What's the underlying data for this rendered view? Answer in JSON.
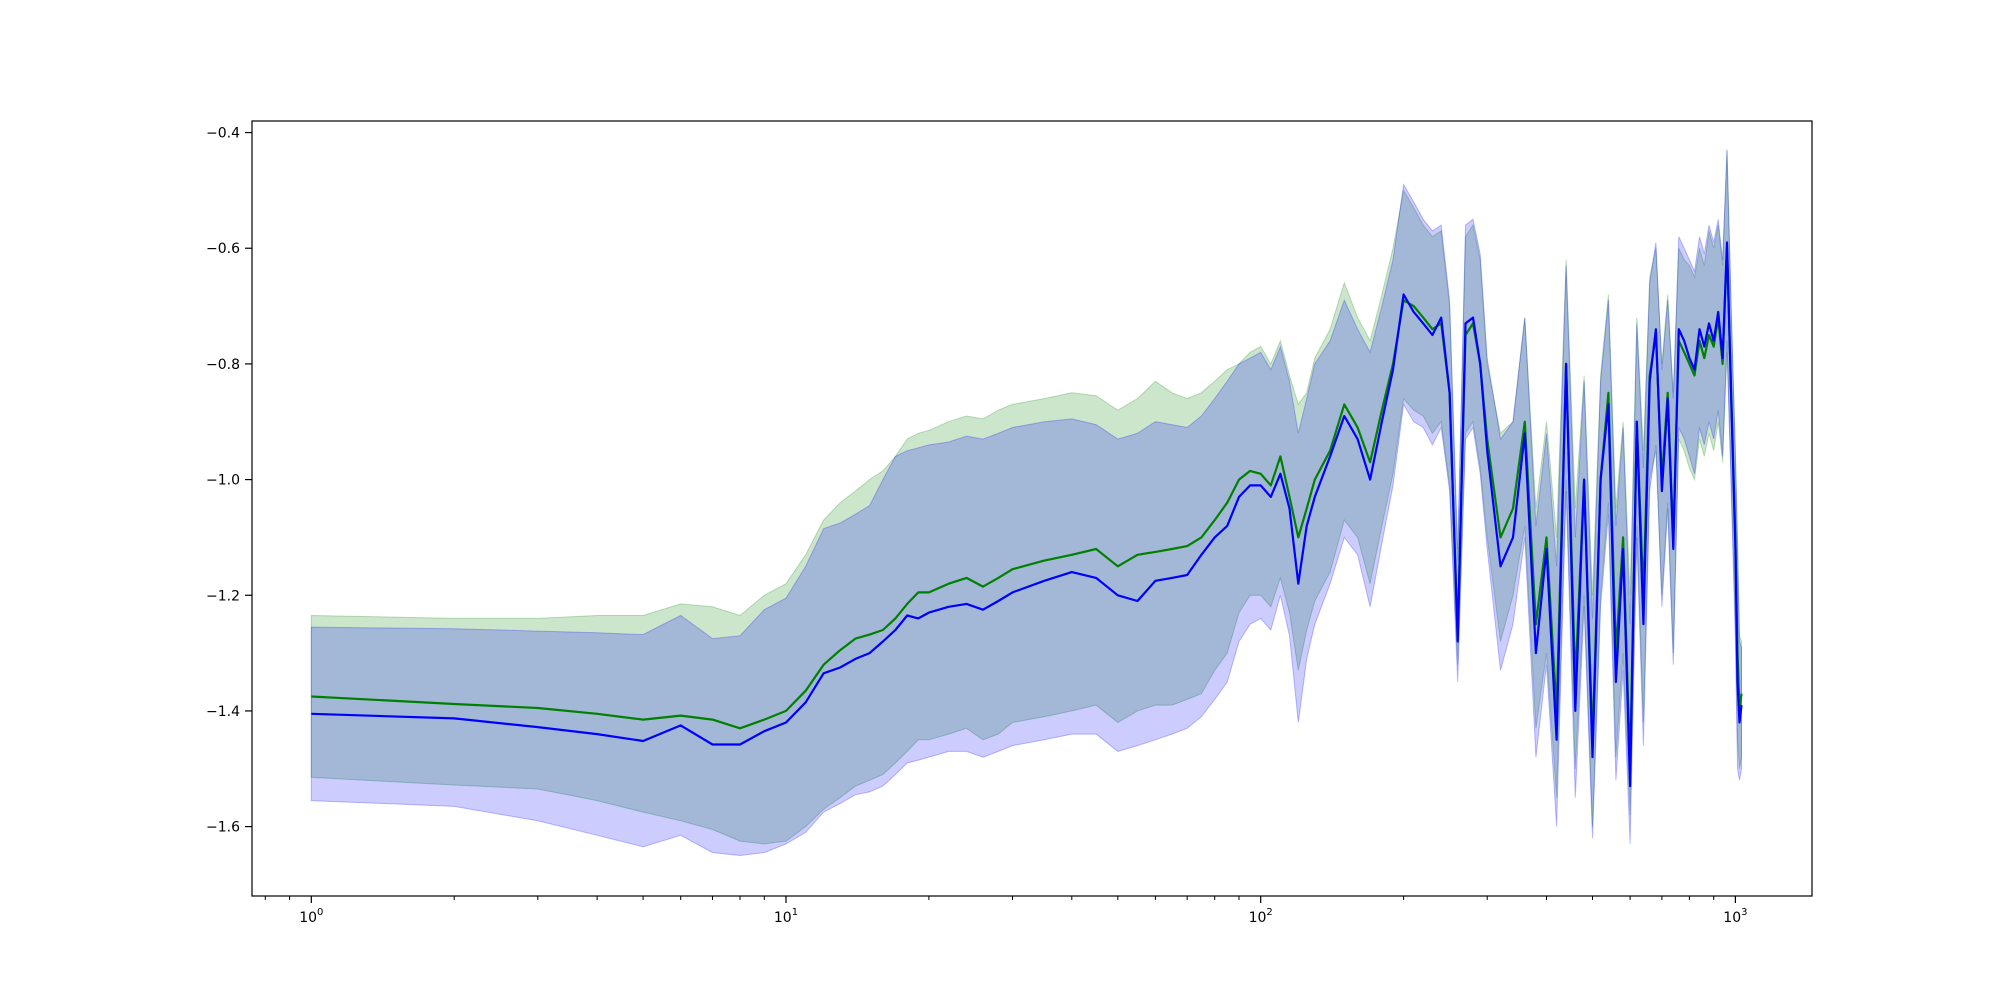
{
  "chart_data": {
    "type": "area",
    "title": "",
    "xlabel": "",
    "ylabel": "",
    "xscale": "log",
    "xlim": [
      0.75,
      1450
    ],
    "ylim": [
      -1.72,
      -0.38
    ],
    "grid": false,
    "legend": "none",
    "x_ticks": [
      {
        "value": 1,
        "base": "10",
        "exp": "0"
      },
      {
        "value": 10,
        "base": "10",
        "exp": "1"
      },
      {
        "value": 100,
        "base": "10",
        "exp": "2"
      },
      {
        "value": 1000,
        "base": "10",
        "exp": "3"
      }
    ],
    "y_ticks": [
      {
        "value": -1.6,
        "label": "−1.6"
      },
      {
        "value": -1.4,
        "label": "−1.4"
      },
      {
        "value": -1.2,
        "label": "−1.2"
      },
      {
        "value": -1.0,
        "label": "−1.0"
      },
      {
        "value": -0.8,
        "label": "−0.8"
      },
      {
        "value": -0.6,
        "label": "−0.6"
      },
      {
        "value": -0.4,
        "label": "−0.4"
      }
    ],
    "series": [
      {
        "color": "#008000",
        "band_color": "#008000",
        "x": [
          1,
          2,
          3,
          4,
          5,
          6,
          7,
          8,
          9,
          10,
          11,
          12,
          13,
          14,
          15,
          16,
          17,
          18,
          19,
          20,
          22,
          24,
          26,
          28,
          30,
          35,
          40,
          45,
          50,
          55,
          60,
          65,
          70,
          75,
          80,
          85,
          90,
          95,
          100,
          105,
          110,
          115,
          120,
          125,
          130,
          140,
          150,
          160,
          170,
          180,
          190,
          200,
          210,
          220,
          230,
          240,
          250,
          260,
          270,
          280,
          290,
          300,
          320,
          340,
          360,
          380,
          400,
          420,
          440,
          460,
          480,
          500,
          520,
          540,
          560,
          580,
          600,
          620,
          640,
          660,
          680,
          700,
          720,
          740,
          760,
          780,
          800,
          820,
          840,
          860,
          880,
          900,
          920,
          940,
          960,
          980,
          1000,
          1010,
          1020,
          1030
        ],
        "mean": [
          -1.375,
          -1.388,
          -1.395,
          -1.405,
          -1.415,
          -1.408,
          -1.415,
          -1.43,
          -1.415,
          -1.4,
          -1.365,
          -1.32,
          -1.295,
          -1.275,
          -1.268,
          -1.26,
          -1.24,
          -1.215,
          -1.195,
          -1.195,
          -1.18,
          -1.17,
          -1.185,
          -1.17,
          -1.155,
          -1.14,
          -1.13,
          -1.12,
          -1.15,
          -1.13,
          -1.125,
          -1.12,
          -1.115,
          -1.1,
          -1.07,
          -1.04,
          -1.0,
          -0.985,
          -0.99,
          -1.01,
          -0.96,
          -1.03,
          -1.1,
          -1.05,
          -1.0,
          -0.95,
          -0.87,
          -0.91,
          -0.97,
          -0.88,
          -0.8,
          -0.69,
          -0.7,
          -0.72,
          -0.74,
          -0.73,
          -0.85,
          -1.27,
          -0.75,
          -0.73,
          -0.8,
          -0.93,
          -1.1,
          -1.05,
          -0.9,
          -1.25,
          -1.1,
          -1.4,
          -0.8,
          -1.35,
          -1.0,
          -1.45,
          -1.0,
          -0.85,
          -1.3,
          -1.1,
          -1.5,
          -0.9,
          -1.2,
          -0.82,
          -0.75,
          -1.0,
          -0.85,
          -1.1,
          -0.76,
          -0.78,
          -0.8,
          -0.82,
          -0.76,
          -0.79,
          -0.75,
          -0.77,
          -0.72,
          -0.8,
          -0.6,
          -0.85,
          -1.1,
          -1.3,
          -1.4,
          -1.37
        ],
        "upper": [
          -1.235,
          -1.24,
          -1.24,
          -1.235,
          -1.235,
          -1.215,
          -1.22,
          -1.235,
          -1.2,
          -1.18,
          -1.13,
          -1.07,
          -1.04,
          -1.02,
          -1.0,
          -0.985,
          -0.96,
          -0.93,
          -0.92,
          -0.915,
          -0.9,
          -0.89,
          -0.895,
          -0.88,
          -0.87,
          -0.86,
          -0.85,
          -0.855,
          -0.88,
          -0.86,
          -0.83,
          -0.85,
          -0.86,
          -0.85,
          -0.83,
          -0.81,
          -0.8,
          -0.78,
          -0.77,
          -0.8,
          -0.76,
          -0.82,
          -0.87,
          -0.85,
          -0.79,
          -0.74,
          -0.66,
          -0.72,
          -0.76,
          -0.68,
          -0.6,
          -0.5,
          -0.53,
          -0.56,
          -0.58,
          -0.57,
          -0.7,
          -1.14,
          -0.58,
          -0.56,
          -0.62,
          -0.8,
          -0.92,
          -0.9,
          -0.72,
          -1.05,
          -0.9,
          -1.1,
          -0.62,
          -1.05,
          -0.82,
          -1.2,
          -0.82,
          -0.68,
          -1.05,
          -0.9,
          -1.2,
          -0.72,
          -0.95,
          -0.65,
          -0.6,
          -0.8,
          -0.68,
          -0.85,
          -0.6,
          -0.62,
          -0.63,
          -0.65,
          -0.6,
          -0.63,
          -0.57,
          -0.6,
          -0.56,
          -0.63,
          -0.43,
          -0.7,
          -0.95,
          -1.1,
          -1.27,
          -1.28
        ],
        "lower": [
          -1.515,
          -1.528,
          -1.535,
          -1.555,
          -1.575,
          -1.59,
          -1.605,
          -1.625,
          -1.63,
          -1.625,
          -1.6,
          -1.57,
          -1.55,
          -1.53,
          -1.52,
          -1.51,
          -1.49,
          -1.47,
          -1.45,
          -1.45,
          -1.44,
          -1.43,
          -1.45,
          -1.44,
          -1.42,
          -1.41,
          -1.4,
          -1.39,
          -1.42,
          -1.4,
          -1.39,
          -1.39,
          -1.38,
          -1.37,
          -1.33,
          -1.3,
          -1.23,
          -1.2,
          -1.2,
          -1.22,
          -1.17,
          -1.23,
          -1.33,
          -1.26,
          -1.21,
          -1.16,
          -1.07,
          -1.1,
          -1.18,
          -1.08,
          -0.99,
          -0.86,
          -0.88,
          -0.89,
          -0.92,
          -0.9,
          -1.01,
          -1.32,
          -0.92,
          -0.9,
          -0.98,
          -1.1,
          -1.28,
          -1.2,
          -1.08,
          -1.43,
          -1.3,
          -1.55,
          -1.0,
          -1.5,
          -1.2,
          -1.6,
          -1.2,
          -1.04,
          -1.48,
          -1.3,
          -1.58,
          -1.08,
          -1.42,
          -1.0,
          -0.95,
          -1.2,
          -1.04,
          -1.3,
          -0.93,
          -0.95,
          -0.98,
          -1.0,
          -0.93,
          -0.96,
          -0.92,
          -0.95,
          -0.9,
          -0.97,
          -0.78,
          -1.0,
          -1.25,
          -1.45,
          -1.5,
          -1.48
        ]
      },
      {
        "color": "#0000ff",
        "band_color": "#0000ff",
        "x": [
          1,
          2,
          3,
          4,
          5,
          6,
          7,
          8,
          9,
          10,
          11,
          12,
          13,
          14,
          15,
          16,
          17,
          18,
          19,
          20,
          22,
          24,
          26,
          28,
          30,
          35,
          40,
          45,
          50,
          55,
          60,
          65,
          70,
          75,
          80,
          85,
          90,
          95,
          100,
          105,
          110,
          115,
          120,
          125,
          130,
          140,
          150,
          160,
          170,
          180,
          190,
          200,
          210,
          220,
          230,
          240,
          250,
          260,
          270,
          280,
          290,
          300,
          320,
          340,
          360,
          380,
          400,
          420,
          440,
          460,
          480,
          500,
          520,
          540,
          560,
          580,
          600,
          620,
          640,
          660,
          680,
          700,
          720,
          740,
          760,
          780,
          800,
          820,
          840,
          860,
          880,
          900,
          920,
          940,
          960,
          980,
          1000,
          1010,
          1020,
          1030
        ],
        "mean": [
          -1.405,
          -1.413,
          -1.428,
          -1.44,
          -1.452,
          -1.425,
          -1.458,
          -1.458,
          -1.435,
          -1.42,
          -1.385,
          -1.335,
          -1.325,
          -1.31,
          -1.3,
          -1.28,
          -1.26,
          -1.235,
          -1.24,
          -1.23,
          -1.22,
          -1.215,
          -1.225,
          -1.21,
          -1.195,
          -1.175,
          -1.16,
          -1.17,
          -1.2,
          -1.21,
          -1.175,
          -1.17,
          -1.165,
          -1.13,
          -1.1,
          -1.08,
          -1.03,
          -1.01,
          -1.01,
          -1.03,
          -0.99,
          -1.05,
          -1.18,
          -1.08,
          -1.03,
          -0.96,
          -0.89,
          -0.93,
          -1.0,
          -0.9,
          -0.81,
          -0.68,
          -0.71,
          -0.73,
          -0.75,
          -0.72,
          -0.85,
          -1.28,
          -0.73,
          -0.72,
          -0.8,
          -0.95,
          -1.15,
          -1.1,
          -0.92,
          -1.3,
          -1.12,
          -1.45,
          -0.8,
          -1.4,
          -1.0,
          -1.48,
          -1.0,
          -0.87,
          -1.35,
          -1.12,
          -1.53,
          -0.9,
          -1.25,
          -0.83,
          -0.74,
          -1.02,
          -0.86,
          -1.12,
          -0.74,
          -0.76,
          -0.79,
          -0.81,
          -0.74,
          -0.77,
          -0.73,
          -0.76,
          -0.71,
          -0.79,
          -0.59,
          -0.86,
          -1.12,
          -1.35,
          -1.42,
          -1.39
        ],
        "upper": [
          -1.255,
          -1.258,
          -1.262,
          -1.265,
          -1.268,
          -1.235,
          -1.275,
          -1.27,
          -1.225,
          -1.205,
          -1.15,
          -1.085,
          -1.075,
          -1.06,
          -1.045,
          -1.0,
          -0.96,
          -0.95,
          -0.945,
          -0.94,
          -0.935,
          -0.925,
          -0.93,
          -0.92,
          -0.91,
          -0.9,
          -0.895,
          -0.905,
          -0.93,
          -0.92,
          -0.9,
          -0.905,
          -0.91,
          -0.89,
          -0.86,
          -0.83,
          -0.8,
          -0.79,
          -0.78,
          -0.81,
          -0.77,
          -0.83,
          -0.92,
          -0.86,
          -0.8,
          -0.76,
          -0.69,
          -0.74,
          -0.78,
          -0.7,
          -0.62,
          -0.49,
          -0.52,
          -0.55,
          -0.57,
          -0.56,
          -0.69,
          -1.12,
          -0.56,
          -0.55,
          -0.61,
          -0.79,
          -0.93,
          -0.9,
          -0.72,
          -1.08,
          -0.92,
          -1.15,
          -0.63,
          -1.1,
          -0.83,
          -1.24,
          -0.83,
          -0.69,
          -1.08,
          -0.91,
          -1.25,
          -0.73,
          -0.98,
          -0.66,
          -0.59,
          -0.81,
          -0.69,
          -0.86,
          -0.58,
          -0.6,
          -0.62,
          -0.64,
          -0.58,
          -0.61,
          -0.56,
          -0.59,
          -0.55,
          -0.62,
          -0.43,
          -0.71,
          -0.96,
          -1.12,
          -1.28,
          -1.29
        ],
        "lower": [
          -1.555,
          -1.565,
          -1.59,
          -1.615,
          -1.635,
          -1.615,
          -1.645,
          -1.65,
          -1.645,
          -1.63,
          -1.61,
          -1.575,
          -1.56,
          -1.545,
          -1.54,
          -1.53,
          -1.51,
          -1.49,
          -1.485,
          -1.48,
          -1.47,
          -1.47,
          -1.48,
          -1.47,
          -1.46,
          -1.45,
          -1.44,
          -1.44,
          -1.47,
          -1.46,
          -1.45,
          -1.44,
          -1.43,
          -1.41,
          -1.38,
          -1.35,
          -1.28,
          -1.25,
          -1.24,
          -1.26,
          -1.2,
          -1.27,
          -1.42,
          -1.31,
          -1.25,
          -1.18,
          -1.1,
          -1.13,
          -1.22,
          -1.11,
          -1.01,
          -0.87,
          -0.9,
          -0.91,
          -0.94,
          -0.91,
          -1.02,
          -1.35,
          -0.93,
          -0.91,
          -0.99,
          -1.12,
          -1.33,
          -1.25,
          -1.1,
          -1.48,
          -1.32,
          -1.6,
          -1.02,
          -1.55,
          -1.22,
          -1.62,
          -1.22,
          -1.06,
          -1.52,
          -1.33,
          -1.63,
          -1.1,
          -1.46,
          -1.02,
          -0.94,
          -1.22,
          -1.05,
          -1.32,
          -0.91,
          -0.93,
          -0.96,
          -0.99,
          -0.91,
          -0.94,
          -0.9,
          -0.93,
          -0.88,
          -0.96,
          -0.76,
          -1.02,
          -1.28,
          -1.5,
          -1.52,
          -1.5
        ]
      }
    ]
  }
}
